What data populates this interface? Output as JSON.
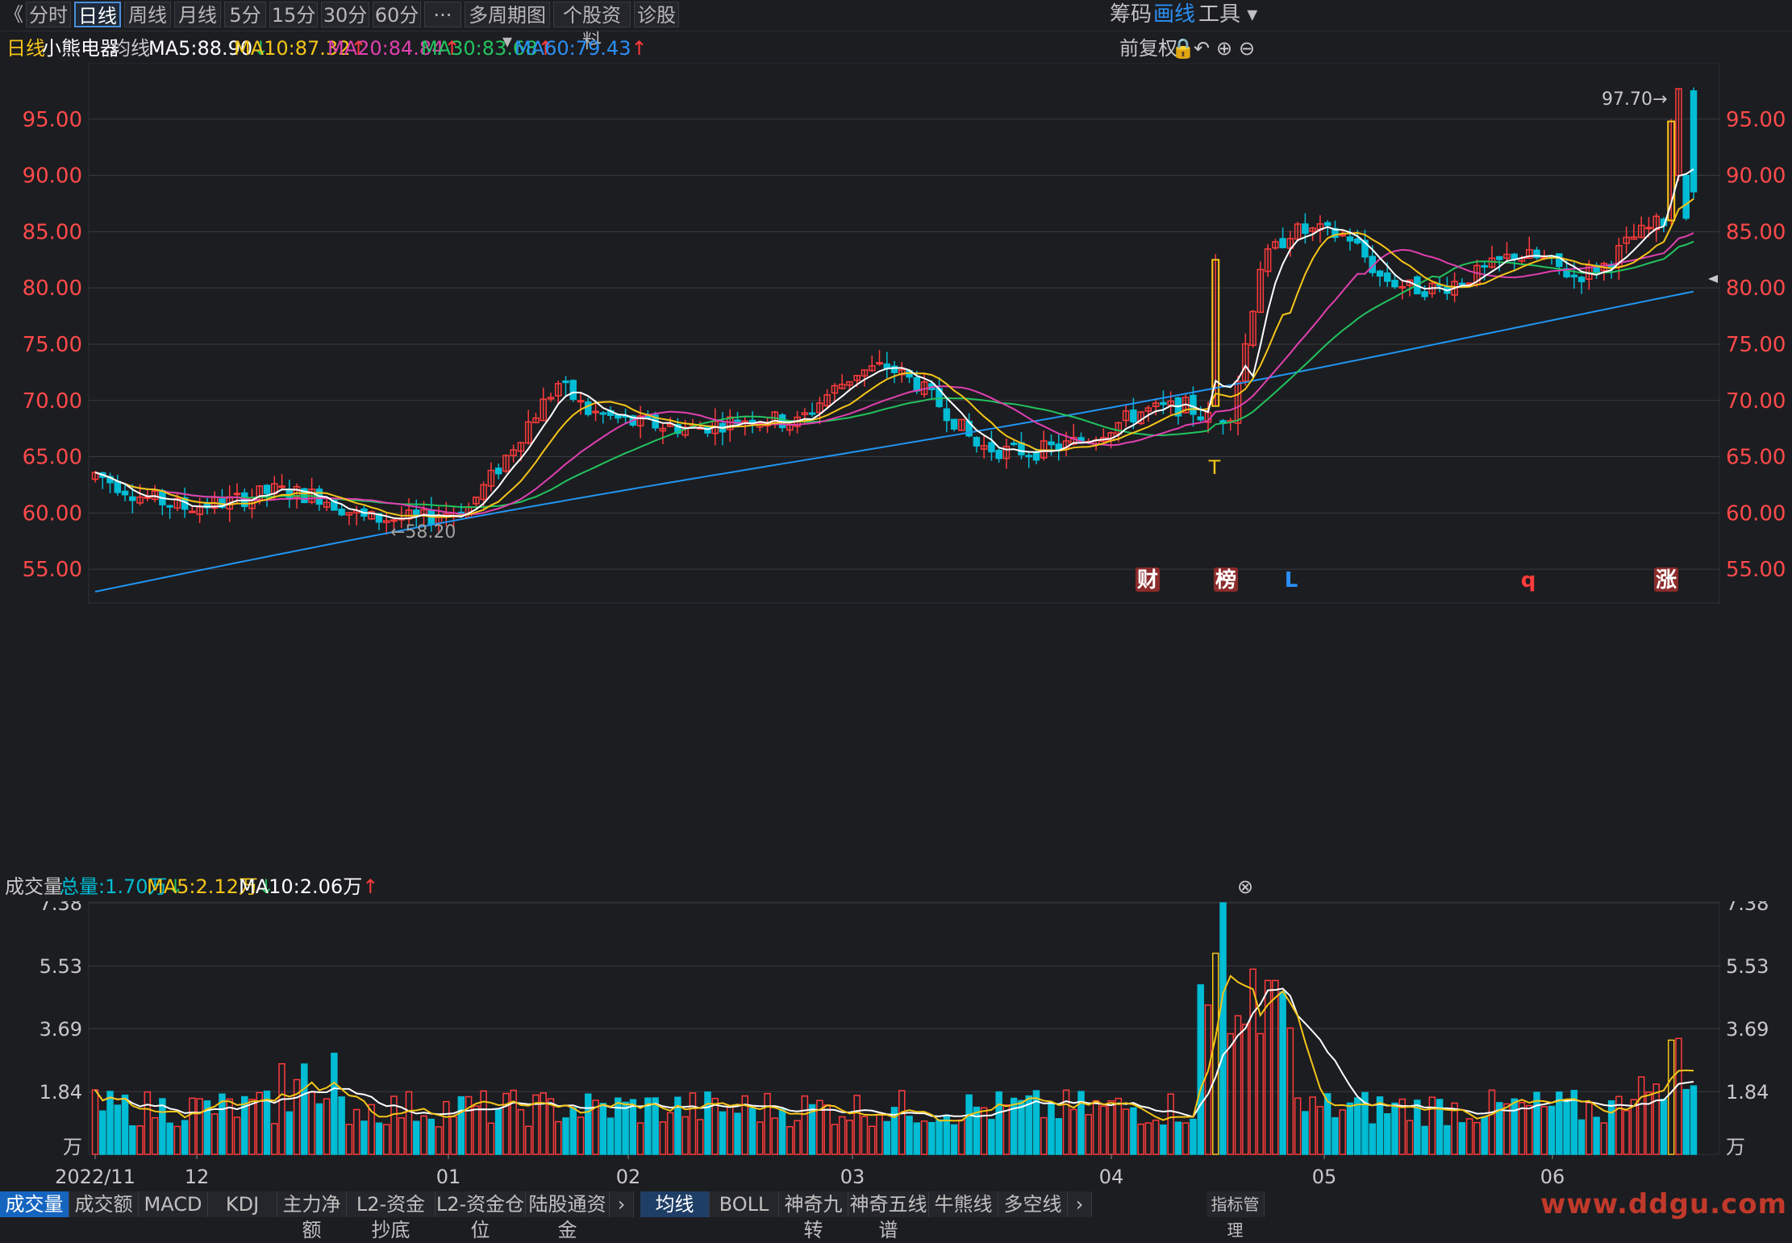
{
  "topbar": {
    "back": "《",
    "tabs": [
      "分时",
      "日线",
      "周线",
      "月线",
      "5分",
      "15分",
      "30分",
      "60分",
      "···",
      "多周期图 ▾",
      "个股资料",
      "诊股"
    ],
    "active_tab": "日线",
    "right": {
      "chips": "筹码",
      "draw": "画线",
      "tools": "工具 ▾"
    }
  },
  "info": {
    "period": "日线",
    "stock": "小熊电器",
    "ma_label": "均线",
    "ma5": "MA5:88.90",
    "ma10": "MA10:87.32",
    "ma20": "MA20:84.84",
    "ma30": "MA30:83.68",
    "ma60": "MA60:79.43",
    "adjust": "前复权"
  },
  "colors": {
    "up": "#ff3b3b",
    "down": "#00bcd4",
    "ma5": "#ffffff",
    "ma10": "#f5c518",
    "ma20": "#e040b0",
    "ma30": "#22c35e",
    "ma60": "#2196f3",
    "axis_text": "#ff4a4a",
    "grid": "#3a3b40"
  },
  "chart_data": [
    {
      "type": "candlestick",
      "title": "小熊电器 日线",
      "ylim": [
        52,
        100
      ],
      "y_ticks": [
        "95.00",
        "90.00",
        "85.00",
        "80.00",
        "75.00",
        "70.00",
        "65.00",
        "60.00",
        "55.00"
      ],
      "x_labels": [
        "2022/11",
        "12",
        "01",
        "02",
        "03",
        "04",
        "05",
        "06"
      ],
      "annotations": {
        "high": "97.70→",
        "low": "←58.20"
      },
      "markers": [
        "财",
        "榜",
        "L",
        "q",
        "涨",
        "T"
      ],
      "series": [
        {
          "name": "MA5",
          "value": 88.9
        },
        {
          "name": "MA10",
          "value": 87.32
        },
        {
          "name": "MA20",
          "value": 84.84
        },
        {
          "name": "MA30",
          "value": 83.68
        },
        {
          "name": "MA60",
          "value": 79.43
        }
      ]
    },
    {
      "type": "bar",
      "title": "成交量",
      "y_ticks": [
        "7.38",
        "5.53",
        "3.69",
        "1.84",
        "万"
      ],
      "ylim": [
        0,
        7.38
      ],
      "series": [
        {
          "name": "总量",
          "value": 1.7
        },
        {
          "name": "MA5",
          "value": 2.12
        },
        {
          "name": "MA10",
          "value": 2.06
        }
      ]
    }
  ],
  "vol": {
    "label": "成交量",
    "total": "总量:1.70万",
    "ma5": "MA5:2.12万",
    "ma10": "MA10:2.06万"
  },
  "bottom": {
    "left_tabs": [
      "成交量",
      "成交额",
      "MACD",
      "KDJ",
      "主力净额",
      "L2-资金抄底",
      "L2-资金仓位",
      "陆股通资金"
    ],
    "right_tabs": [
      "均线",
      "BOLL",
      "神奇九转",
      "神奇五线谱",
      "牛熊线",
      "多空线"
    ],
    "more": "指标管理",
    "watermark": "www.ddgu.com"
  }
}
